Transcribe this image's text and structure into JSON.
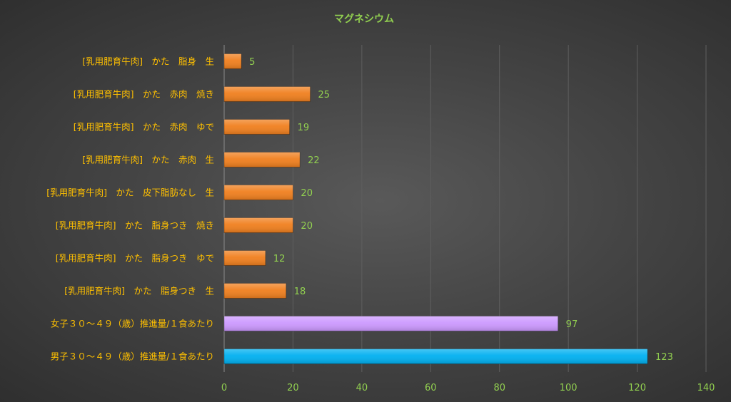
{
  "colors": {
    "title": "#92d050",
    "category_label": "#ffc000",
    "value_label": "#92d050",
    "tick_label": "#92d050",
    "gridline": "#5f5f5f",
    "axis_line": "#8a8a8a",
    "bar_orange": "#f07f1e",
    "bar_purple": "#cc99ff",
    "bar_blue": "#00b0f0"
  },
  "chart_data": {
    "type": "bar",
    "orientation": "horizontal",
    "title": "マグネシウム",
    "xlabel": "",
    "ylabel": "",
    "xlim": [
      0,
      140
    ],
    "ticks": [
      0,
      20,
      40,
      60,
      80,
      100,
      120,
      140
    ],
    "grid": true,
    "legend": "none",
    "categories": [
      "[乳用肥育牛肉]　かた　脂身　生",
      "[乳用肥育牛肉]　かた　赤肉　焼き",
      "[乳用肥育牛肉]　かた　赤肉　ゆで",
      "[乳用肥育牛肉]　かた　赤肉　生",
      "[乳用肥育牛肉]　かた　皮下脂肪なし　生",
      "[乳用肥育牛肉]　かた　脂身つき　焼き",
      "[乳用肥育牛肉]　かた　脂身つき　ゆで",
      "[乳用肥育牛肉]　かた　脂身つき　生",
      "女子３０～４９（歳）推進量/１食あたり",
      "男子３０～４９（歳）推進量/１食あたり"
    ],
    "values": [
      5,
      25,
      19,
      22,
      20,
      20,
      12,
      18,
      97,
      123
    ],
    "value_labels": [
      "5",
      "25",
      "19",
      "22",
      "20",
      "20",
      "12",
      "18",
      "97",
      "123"
    ],
    "bar_colors": [
      "#f07f1e",
      "#f07f1e",
      "#f07f1e",
      "#f07f1e",
      "#f07f1e",
      "#f07f1e",
      "#f07f1e",
      "#f07f1e",
      "#cc99ff",
      "#00b0f0"
    ]
  }
}
